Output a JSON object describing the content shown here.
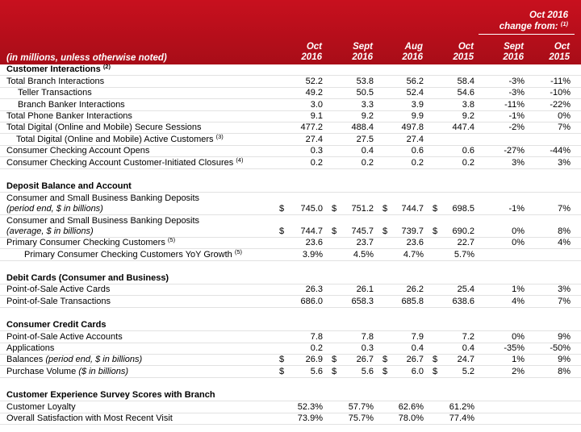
{
  "header": {
    "subtitle": "(in millions, unless otherwise noted)",
    "group": {
      "line1": "Oct 2016",
      "line2": "change from:",
      "note": "(1)"
    },
    "columns": [
      {
        "line1": "Oct",
        "line2": "2016"
      },
      {
        "line1": "Sept",
        "line2": "2016"
      },
      {
        "line1": "Aug",
        "line2": "2016"
      },
      {
        "line1": "Oct",
        "line2": "2015"
      },
      {
        "line1": "Sept",
        "line2": "2016"
      },
      {
        "line1": "Oct",
        "line2": "2015"
      }
    ]
  },
  "sections": [
    {
      "title": "Customer Interactions",
      "note": "(2)",
      "rows": [
        {
          "label": "Total Branch Interactions",
          "values": [
            "52.2",
            "53.8",
            "56.2",
            "58.4",
            "-3%",
            "-11%"
          ]
        },
        {
          "label": "Teller Transactions",
          "values": [
            "49.2",
            "50.5",
            "52.4",
            "54.6",
            "-3%",
            "-10%"
          ]
        },
        {
          "label": "Branch Banker Interactions",
          "values": [
            "3.0",
            "3.3",
            "3.9",
            "3.8",
            "-11%",
            "-22%"
          ]
        },
        {
          "label": "Total Phone Banker Interactions",
          "values": [
            "9.1",
            "9.2",
            "9.9",
            "9.2",
            "-1%",
            "0%"
          ]
        },
        {
          "label": "Total Digital (Online and Mobile) Secure Sessions",
          "values": [
            "477.2",
            "488.4",
            "497.8",
            "447.4",
            "-2%",
            "7%"
          ]
        },
        {
          "label": "Total Digital (Online and Mobile) Active Customers",
          "note": "(3)",
          "values": [
            "27.4",
            "27.5",
            "27.4"
          ]
        },
        {
          "label": "Consumer Checking Account Opens",
          "values": [
            "0.3",
            "0.4",
            "0.6",
            "0.6",
            "-27%",
            "-44%"
          ]
        },
        {
          "label": "Consumer Checking Account Customer-Initiated Closures",
          "note": "(4)",
          "values": [
            "0.2",
            "0.2",
            "0.2",
            "0.2",
            "3%",
            "3%"
          ]
        }
      ]
    },
    {
      "title": "Deposit Balance and Account",
      "rows": [
        {
          "label": "Consumer and Small Business Banking Deposits",
          "line2": "(period end, $ in billions)",
          "prefix": "$",
          "values": [
            "745.0",
            "751.2",
            "744.7",
            "698.5",
            "-1%",
            "7%"
          ]
        },
        {
          "label": "Consumer and Small Business Banking Deposits",
          "line2": "(average, $ in billions)",
          "prefix": "$",
          "values": [
            "744.7",
            "745.7",
            "739.7",
            "690.2",
            "0%",
            "8%"
          ]
        },
        {
          "label": "Primary Consumer Checking Customers",
          "note": "(5)",
          "values": [
            "23.6",
            "23.7",
            "23.6",
            "22.7",
            "0%",
            "4%"
          ]
        },
        {
          "label": "Primary Consumer Checking Customers YoY Growth",
          "note": "(5)",
          "values": [
            "3.9%",
            "4.5%",
            "4.7%",
            "5.7%"
          ]
        }
      ]
    },
    {
      "title": "Debit Cards (Consumer and Business)",
      "rows": [
        {
          "label": "Point-of-Sale Active Cards",
          "values": [
            "26.3",
            "26.1",
            "26.2",
            "25.4",
            "1%",
            "3%"
          ]
        },
        {
          "label": "Point-of-Sale Transactions",
          "values": [
            "686.0",
            "658.3",
            "685.8",
            "638.6",
            "4%",
            "7%"
          ]
        }
      ]
    },
    {
      "title": "Consumer Credit Cards",
      "rows": [
        {
          "label": "Point-of-Sale Active Accounts",
          "values": [
            "7.8",
            "7.8",
            "7.9",
            "7.2",
            "0%",
            "9%"
          ]
        },
        {
          "label": "Applications",
          "values": [
            "0.2",
            "0.3",
            "0.4",
            "0.4",
            "-35%",
            "-50%"
          ]
        },
        {
          "label": "Balances",
          "label_italic": "(period end, $ in billions)",
          "prefix": "$",
          "values": [
            "26.9",
            "26.7",
            "26.7",
            "24.7",
            "1%",
            "9%"
          ]
        },
        {
          "label": "Purchase Volume",
          "label_italic": "($ in billions)",
          "prefix": "$",
          "values": [
            "5.6",
            "5.6",
            "6.0",
            "5.2",
            "2%",
            "8%"
          ]
        }
      ]
    },
    {
      "title": "Customer Experience Survey Scores with Branch",
      "rows": [
        {
          "label": "Customer Loyalty",
          "values": [
            "52.3%",
            "57.7%",
            "62.6%",
            "61.2%"
          ]
        },
        {
          "label": "Overall Satisfaction with Most Recent Visit",
          "values": [
            "73.9%",
            "75.7%",
            "78.0%",
            "77.4%"
          ]
        }
      ]
    }
  ]
}
